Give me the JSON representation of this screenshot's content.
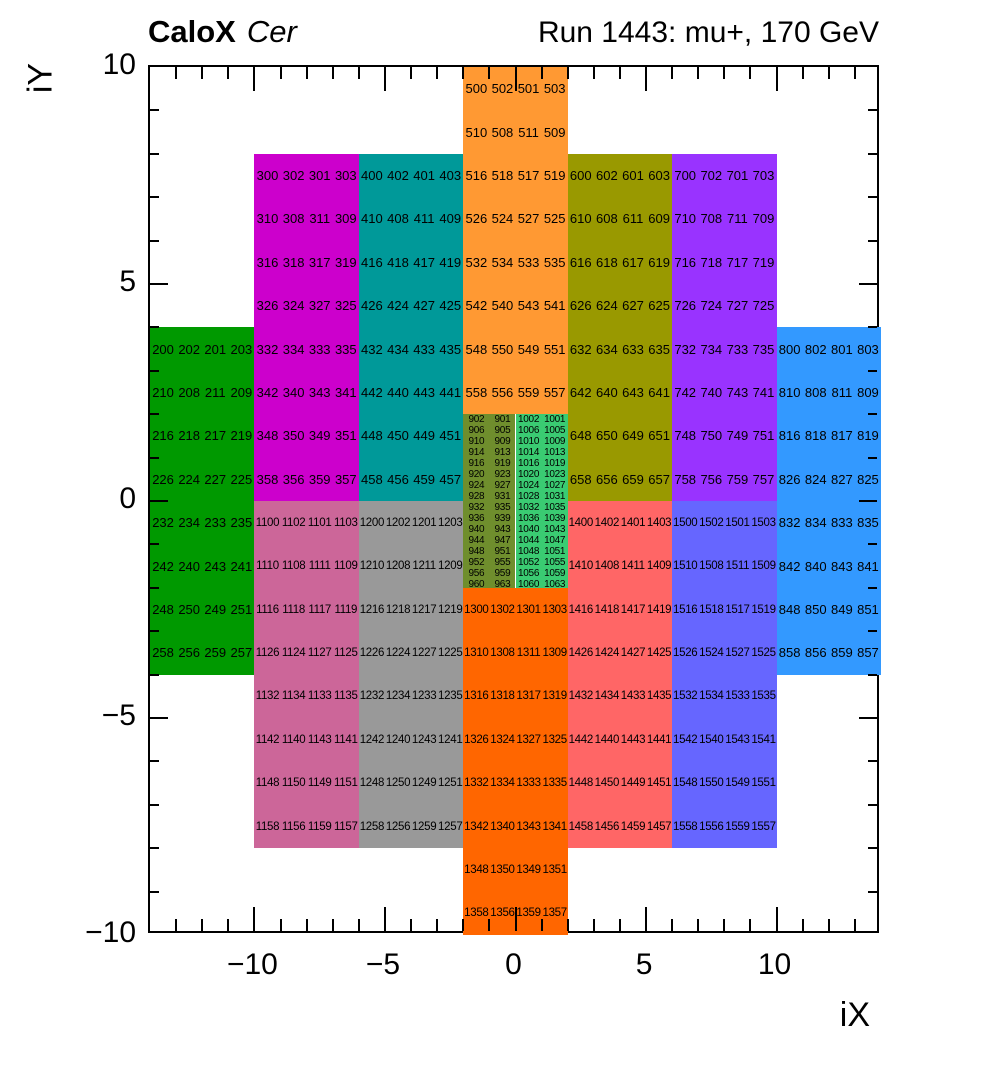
{
  "header": {
    "experiment": "CaloX",
    "detector": "Cer",
    "run_info": "Run 1443: mu+, 170 GeV"
  },
  "chart_data": {
    "type": "heatmap",
    "title": "CaloX Cer — Run 1443: mu+, 170 GeV",
    "xlabel": "iX",
    "ylabel": "iY",
    "xlim": [
      -14,
      14
    ],
    "ylim": [
      -10,
      10
    ],
    "grid": false,
    "x_axis": {
      "label": "iX",
      "range": [
        -14,
        14
      ],
      "minor_tick_step": 1,
      "major_ticks": [
        {
          "value": -10,
          "label": "−10"
        },
        {
          "value": -5,
          "label": "−5"
        },
        {
          "value": 0,
          "label": "0"
        },
        {
          "value": 5,
          "label": "5"
        },
        {
          "value": 10,
          "label": "10"
        }
      ]
    },
    "y_axis": {
      "label": "iY",
      "range": [
        -10,
        10
      ],
      "minor_tick_step": 1,
      "major_ticks": [
        {
          "value": 10,
          "label": "10"
        },
        {
          "value": 5,
          "label": "5"
        },
        {
          "value": 0,
          "label": "0"
        },
        {
          "value": -5,
          "label": "−5"
        },
        {
          "value": -10,
          "label": "−10"
        }
      ]
    },
    "blocks": [
      {
        "id": "module-200-green",
        "color": "#009900",
        "x": [
          -14,
          -10
        ],
        "y": [
          -4,
          4
        ],
        "rows": [
          [
            200,
            202,
            201,
            203
          ],
          [
            210,
            208,
            211,
            209
          ],
          [
            216,
            218,
            217,
            219
          ],
          [
            226,
            224,
            227,
            225
          ],
          [
            232,
            234,
            233,
            235
          ],
          [
            242,
            240,
            243,
            241
          ],
          [
            248,
            250,
            249,
            251
          ],
          [
            258,
            256,
            259,
            257
          ]
        ]
      },
      {
        "id": "module-300-magenta",
        "color": "#CC00CC",
        "x": [
          -10,
          -6
        ],
        "y": [
          0,
          8
        ],
        "rows": [
          [
            300,
            302,
            301,
            303
          ],
          [
            310,
            308,
            311,
            309
          ],
          [
            316,
            318,
            317,
            319
          ],
          [
            326,
            324,
            327,
            325
          ],
          [
            332,
            334,
            333,
            335
          ],
          [
            342,
            340,
            343,
            341
          ],
          [
            348,
            350,
            349,
            351
          ],
          [
            358,
            356,
            359,
            357
          ]
        ]
      },
      {
        "id": "module-400-teal",
        "color": "#009999",
        "x": [
          -6,
          -2
        ],
        "y": [
          0,
          8
        ],
        "rows": [
          [
            400,
            402,
            401,
            403
          ],
          [
            410,
            408,
            411,
            409
          ],
          [
            416,
            418,
            417,
            419
          ],
          [
            426,
            424,
            427,
            425
          ],
          [
            432,
            434,
            433,
            435
          ],
          [
            442,
            440,
            443,
            441
          ],
          [
            448,
            450,
            449,
            451
          ],
          [
            458,
            456,
            459,
            457
          ]
        ]
      },
      {
        "id": "module-500-orange",
        "color": "#FF9933",
        "x": [
          -2,
          2
        ],
        "y": [
          2,
          10
        ],
        "rows": [
          [
            500,
            502,
            501,
            503
          ],
          [
            510,
            508,
            511,
            509
          ],
          [
            516,
            518,
            517,
            519
          ],
          [
            526,
            524,
            527,
            525
          ],
          [
            532,
            534,
            533,
            535
          ],
          [
            542,
            540,
            543,
            541
          ],
          [
            548,
            550,
            549,
            551
          ],
          [
            558,
            556,
            559,
            557
          ]
        ]
      },
      {
        "id": "module-600-olive",
        "color": "#999900",
        "x": [
          2,
          6
        ],
        "y": [
          0,
          8
        ],
        "rows": [
          [
            600,
            602,
            601,
            603
          ],
          [
            610,
            608,
            611,
            609
          ],
          [
            616,
            618,
            617,
            619
          ],
          [
            626,
            624,
            627,
            625
          ],
          [
            632,
            634,
            633,
            635
          ],
          [
            642,
            640,
            643,
            641
          ],
          [
            648,
            650,
            649,
            651
          ],
          [
            658,
            656,
            659,
            657
          ]
        ]
      },
      {
        "id": "module-700-purple",
        "color": "#9933FF",
        "x": [
          6,
          10
        ],
        "y": [
          0,
          8
        ],
        "rows": [
          [
            700,
            702,
            701,
            703
          ],
          [
            710,
            708,
            711,
            709
          ],
          [
            716,
            718,
            717,
            719
          ],
          [
            726,
            724,
            727,
            725
          ],
          [
            732,
            734,
            733,
            735
          ],
          [
            742,
            740,
            743,
            741
          ],
          [
            748,
            750,
            749,
            751
          ],
          [
            758,
            756,
            759,
            757
          ]
        ]
      },
      {
        "id": "module-800-blue",
        "color": "#3399FF",
        "x": [
          10,
          14
        ],
        "y": [
          -4,
          4
        ],
        "rows": [
          [
            800,
            802,
            801,
            803
          ],
          [
            810,
            808,
            811,
            809
          ],
          [
            816,
            818,
            817,
            819
          ],
          [
            826,
            824,
            827,
            825
          ],
          [
            832,
            834,
            833,
            835
          ],
          [
            842,
            840,
            843,
            841
          ],
          [
            848,
            850,
            849,
            851
          ],
          [
            858,
            856,
            859,
            857
          ]
        ]
      },
      {
        "id": "module-900-1000-center-fine",
        "colors": [
          "#6F8E2D",
          "#3ACB72"
        ],
        "x": [
          -2,
          2
        ],
        "y": [
          -2,
          2
        ],
        "rows": [
          [
            902,
            901,
            1002,
            1001
          ],
          [
            906,
            905,
            1006,
            1005
          ],
          [
            910,
            909,
            1010,
            1009
          ],
          [
            914,
            913,
            1014,
            1013
          ],
          [
            916,
            919,
            1016,
            1019
          ],
          [
            920,
            923,
            1020,
            1023
          ],
          [
            924,
            927,
            1024,
            1027
          ],
          [
            928,
            931,
            1028,
            1031
          ],
          [
            932,
            935,
            1032,
            1035
          ],
          [
            936,
            939,
            1036,
            1039
          ],
          [
            940,
            943,
            1040,
            1043
          ],
          [
            944,
            947,
            1044,
            1047
          ],
          [
            948,
            951,
            1048,
            1051
          ],
          [
            952,
            955,
            1052,
            1055
          ],
          [
            956,
            959,
            1056,
            1059
          ],
          [
            960,
            963,
            1060,
            1063
          ]
        ]
      },
      {
        "id": "module-1100-rose",
        "color": "#CC6699",
        "x": [
          -10,
          -6
        ],
        "y": [
          -8,
          0
        ],
        "rows": [
          [
            1100,
            1102,
            1101,
            1103
          ],
          [
            1110,
            1108,
            1111,
            1109
          ],
          [
            1116,
            1118,
            1117,
            1119
          ],
          [
            1126,
            1124,
            1127,
            1125
          ],
          [
            1132,
            1134,
            1133,
            1135
          ],
          [
            1142,
            1140,
            1143,
            1141
          ],
          [
            1148,
            1150,
            1149,
            1151
          ],
          [
            1158,
            1156,
            1159,
            1157
          ]
        ]
      },
      {
        "id": "module-1200-gray",
        "color": "#999999",
        "x": [
          -6,
          -2
        ],
        "y": [
          -8,
          0
        ],
        "rows": [
          [
            1200,
            1202,
            1201,
            1203
          ],
          [
            1210,
            1208,
            1211,
            1209
          ],
          [
            1216,
            1218,
            1217,
            1219
          ],
          [
            1226,
            1224,
            1227,
            1225
          ],
          [
            1232,
            1234,
            1233,
            1235
          ],
          [
            1242,
            1240,
            1243,
            1241
          ],
          [
            1248,
            1250,
            1249,
            1251
          ],
          [
            1258,
            1256,
            1259,
            1257
          ]
        ]
      },
      {
        "id": "module-1300-darkorange",
        "color": "#FF6600",
        "x": [
          -2,
          2
        ],
        "y": [
          -10,
          -2
        ],
        "rows": [
          [
            1300,
            1302,
            1301,
            1303
          ],
          [
            1310,
            1308,
            1311,
            1309
          ],
          [
            1316,
            1318,
            1317,
            1319
          ],
          [
            1326,
            1324,
            1327,
            1325
          ],
          [
            1332,
            1334,
            1333,
            1335
          ],
          [
            1342,
            1340,
            1343,
            1341
          ],
          [
            1348,
            1350,
            1349,
            1351
          ],
          [
            1358,
            1356,
            1359,
            1357
          ]
        ]
      },
      {
        "id": "module-1400-salmon",
        "color": "#FF6666",
        "x": [
          2,
          6
        ],
        "y": [
          -8,
          0
        ],
        "rows": [
          [
            1400,
            1402,
            1401,
            1403
          ],
          [
            1410,
            1408,
            1411,
            1409
          ],
          [
            1416,
            1418,
            1417,
            1419
          ],
          [
            1426,
            1424,
            1427,
            1425
          ],
          [
            1432,
            1434,
            1433,
            1435
          ],
          [
            1442,
            1440,
            1443,
            1441
          ],
          [
            1448,
            1450,
            1449,
            1451
          ],
          [
            1458,
            1456,
            1459,
            1457
          ]
        ]
      },
      {
        "id": "module-1500-violet",
        "color": "#6666FF",
        "x": [
          6,
          10
        ],
        "y": [
          -8,
          0
        ],
        "rows": [
          [
            1500,
            1502,
            1501,
            1503
          ],
          [
            1510,
            1508,
            1511,
            1509
          ],
          [
            1516,
            1518,
            1517,
            1519
          ],
          [
            1526,
            1524,
            1527,
            1525
          ],
          [
            1532,
            1534,
            1533,
            1535
          ],
          [
            1542,
            1540,
            1543,
            1541
          ],
          [
            1548,
            1550,
            1549,
            1551
          ],
          [
            1558,
            1556,
            1559,
            1557
          ]
        ]
      }
    ]
  }
}
